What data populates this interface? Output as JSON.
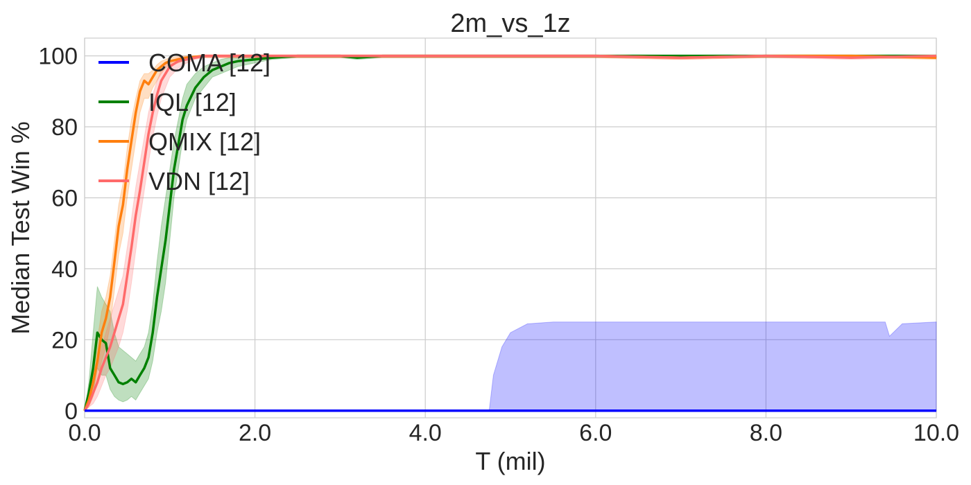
{
  "chart_data": {
    "type": "line",
    "title": "2m_vs_1z",
    "xlabel": "T (mil)",
    "ylabel": "Median Test Win %",
    "xlim": [
      0,
      10
    ],
    "ylim": [
      -2,
      105
    ],
    "xticks": [
      0,
      2,
      4,
      6,
      8,
      10
    ],
    "xtick_labels": [
      "0.0",
      "2.0",
      "4.0",
      "6.0",
      "8.0",
      "10.0"
    ],
    "yticks": [
      0,
      20,
      40,
      60,
      80,
      100
    ],
    "ytick_labels": [
      "0",
      "20",
      "40",
      "60",
      "80",
      "100"
    ],
    "grid": true,
    "legend_position": "top-left",
    "series": [
      {
        "name": "COMA [12]",
        "color": "#0000ff",
        "x": [
          0,
          4.75,
          10
        ],
        "y": [
          0,
          0,
          0
        ],
        "band_x": [
          0,
          4.75,
          4.8,
          4.9,
          5.0,
          5.2,
          5.5,
          6.0,
          7.0,
          8.0,
          9.0,
          9.4,
          9.45,
          9.6,
          10
        ],
        "band_upper": [
          0,
          0,
          10,
          18,
          22,
          24.5,
          25,
          25,
          25,
          25,
          25,
          25,
          21,
          24.5,
          25
        ],
        "band_lower": [
          0,
          0,
          0,
          0,
          0,
          0,
          0,
          0,
          0,
          0,
          0,
          0,
          0,
          0,
          0
        ]
      },
      {
        "name": "IQL [12]",
        "color": "#008000",
        "x": [
          0,
          0.05,
          0.1,
          0.15,
          0.2,
          0.25,
          0.3,
          0.35,
          0.4,
          0.45,
          0.5,
          0.55,
          0.6,
          0.65,
          0.7,
          0.75,
          0.8,
          0.85,
          0.9,
          0.95,
          1.0,
          1.05,
          1.1,
          1.15,
          1.2,
          1.3,
          1.4,
          1.5,
          1.6,
          1.7,
          1.8,
          2.0,
          2.2,
          2.5,
          3.0,
          3.2,
          3.5,
          4.0,
          5.0,
          6.0,
          7.0,
          8.0,
          9.0,
          10.0
        ],
        "y": [
          0,
          5,
          12,
          22,
          20,
          19,
          12,
          10,
          8,
          7.5,
          8,
          9,
          8,
          10,
          12,
          15,
          22,
          32,
          40,
          48,
          58,
          68,
          75,
          82,
          86,
          91,
          94,
          96,
          97,
          98,
          98.5,
          99,
          99.5,
          100,
          100,
          99.5,
          100,
          100,
          100,
          100,
          100,
          100,
          100,
          100
        ],
        "band_upper": [
          0,
          8,
          22,
          35,
          32,
          30,
          28,
          22,
          18,
          17,
          16,
          15,
          14,
          16,
          18,
          22,
          30,
          42,
          52,
          60,
          68,
          76,
          82,
          88,
          92,
          95,
          97,
          98,
          99,
          99.5,
          99.5,
          100,
          100,
          100,
          100,
          100,
          100,
          100,
          100,
          100,
          100,
          100,
          100,
          100
        ],
        "band_lower": [
          0,
          2,
          5,
          12,
          10,
          10,
          6,
          4,
          3,
          2.5,
          3,
          4,
          3,
          5,
          7,
          9,
          14,
          22,
          28,
          36,
          48,
          60,
          68,
          76,
          82,
          88,
          91,
          94,
          95,
          96,
          97,
          98,
          99,
          99.5,
          99.5,
          99,
          99.5,
          99.5,
          99.5,
          99.5,
          99.5,
          99.5,
          99.5,
          99.5
        ]
      },
      {
        "name": "QMIX [12]",
        "color": "#ff7f0e",
        "x": [
          0,
          0.05,
          0.1,
          0.15,
          0.2,
          0.25,
          0.3,
          0.35,
          0.4,
          0.45,
          0.5,
          0.55,
          0.6,
          0.65,
          0.7,
          0.75,
          0.8,
          0.85,
          0.9,
          0.95,
          1.0,
          1.1,
          1.2,
          1.4,
          1.6,
          2.0,
          2.5,
          3.0,
          4.0,
          5.0,
          6.0,
          7.0,
          8.0,
          9.0,
          10.0
        ],
        "y": [
          0,
          3,
          8,
          14,
          22,
          26,
          32,
          42,
          52,
          58,
          68,
          76,
          84,
          90,
          93,
          92,
          94,
          96,
          97,
          98,
          98.5,
          99,
          99.5,
          100,
          100,
          100,
          100,
          100,
          100,
          100,
          100,
          99.5,
          100,
          100,
          99.5
        ],
        "band_upper": [
          0,
          5,
          12,
          20,
          28,
          32,
          38,
          48,
          58,
          64,
          74,
          82,
          88,
          93,
          95,
          95,
          96,
          97.5,
          98.5,
          99,
          99.5,
          99.8,
          100,
          100,
          100,
          100,
          100,
          100,
          100,
          100,
          100,
          100,
          100,
          100,
          100
        ],
        "band_lower": [
          0,
          1,
          4,
          8,
          14,
          18,
          24,
          34,
          44,
          50,
          60,
          68,
          76,
          84,
          88,
          88,
          91,
          93,
          95,
          96.5,
          97.5,
          98,
          99,
          99.5,
          99.5,
          99.5,
          99.5,
          99.5,
          99.5,
          99.5,
          99.5,
          99,
          99.5,
          99.5,
          99
        ]
      },
      {
        "name": "VDN [12]",
        "color": "#ff6a6a",
        "x": [
          0,
          0.05,
          0.1,
          0.15,
          0.2,
          0.25,
          0.3,
          0.35,
          0.4,
          0.45,
          0.5,
          0.55,
          0.6,
          0.65,
          0.7,
          0.75,
          0.8,
          0.85,
          0.9,
          0.95,
          1.0,
          1.1,
          1.2,
          1.3,
          1.4,
          1.6,
          2.0,
          2.5,
          3.0,
          4.0,
          5.0,
          6.0,
          7.0,
          8.0,
          9.0,
          10.0
        ],
        "y": [
          0,
          2,
          5,
          8,
          12,
          15,
          18,
          22,
          26,
          30,
          38,
          46,
          55,
          62,
          70,
          78,
          84,
          89,
          93,
          95,
          97,
          98.5,
          99,
          99.5,
          100,
          100,
          100,
          100,
          100,
          100,
          100,
          100,
          99.5,
          100,
          99.5,
          100
        ],
        "band_upper": [
          0,
          4,
          8,
          12,
          18,
          22,
          26,
          30,
          34,
          38,
          46,
          54,
          63,
          70,
          77,
          84,
          89,
          93,
          96,
          97.5,
          98.5,
          99.5,
          99.8,
          100,
          100,
          100,
          100,
          100,
          100,
          100,
          100,
          100,
          100,
          100,
          100,
          100
        ],
        "band_lower": [
          0,
          1,
          2,
          4,
          7,
          10,
          12,
          15,
          18,
          22,
          28,
          36,
          45,
          54,
          62,
          70,
          77,
          83,
          88,
          91,
          94,
          96.5,
          98,
          99,
          99.5,
          99.5,
          99.5,
          99.5,
          99.5,
          99.5,
          99.5,
          99.5,
          99,
          99.5,
          99,
          99.5
        ]
      }
    ]
  }
}
